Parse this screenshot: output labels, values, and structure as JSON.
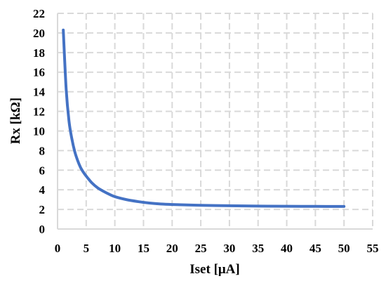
{
  "chart_data": {
    "type": "line",
    "xlabel": "Iset [μA]",
    "ylabel": "Rx [kΩ]",
    "xlim": [
      0,
      55
    ],
    "ylim": [
      0,
      22
    ],
    "x_ticks": [
      "0",
      "5",
      "10",
      "15",
      "20",
      "25",
      "30",
      "35",
      "40",
      "45",
      "50",
      "55"
    ],
    "y_ticks": [
      "0",
      "2",
      "4",
      "6",
      "8",
      "10",
      "12",
      "14",
      "16",
      "18",
      "20",
      "22"
    ],
    "grid": true,
    "series": [
      {
        "color": "#4472c4",
        "x": [
          1,
          1.5,
          2,
          2.5,
          3,
          3.5,
          4,
          4.5,
          5,
          6,
          7,
          8,
          9,
          10,
          12,
          14,
          16,
          18,
          20,
          25,
          30,
          35,
          40,
          45,
          50
        ],
        "y": [
          20.3,
          14.3,
          11.0,
          9.2,
          7.9,
          7.0,
          6.3,
          5.8,
          5.4,
          4.7,
          4.2,
          3.85,
          3.55,
          3.3,
          3.0,
          2.8,
          2.65,
          2.55,
          2.5,
          2.42,
          2.37,
          2.34,
          2.32,
          2.31,
          2.3
        ]
      }
    ]
  }
}
